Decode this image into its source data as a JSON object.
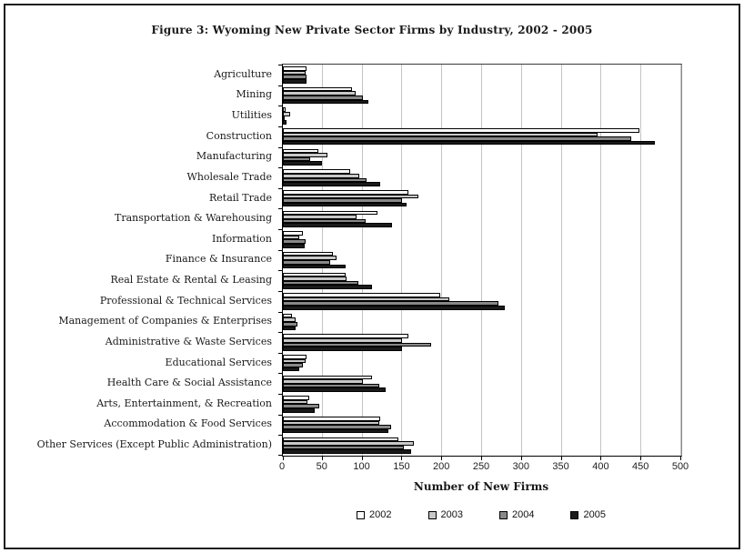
{
  "chart_data": {
    "type": "bar",
    "orientation": "horizontal",
    "title": "Figure 3: Wyoming New Private Sector Firms by Industry, 2002 - 2005",
    "xlabel": "Number of New Firms",
    "ylabel": "",
    "xlim": [
      0,
      500
    ],
    "xticks": [
      0,
      50,
      100,
      150,
      200,
      250,
      300,
      350,
      400,
      450,
      500
    ],
    "grid": "vertical",
    "legend_position": "bottom",
    "categories": [
      "Agriculture",
      "Mining",
      "Utilities",
      "Construction",
      "Manufacturing",
      "Wholesale Trade",
      "Retail Trade",
      "Transportation & Warehousing",
      "Information",
      "Finance & Insurance",
      "Real Estate & Rental & Leasing",
      "Professional & Technical Services",
      "Management of Companies & Enterprises",
      "Administrative & Waste Services",
      "Educational Services",
      "Health Care & Social Assistance",
      "Arts, Entertainment, & Recreation",
      "Accommodation & Food Services",
      "Other Services (Except Public Administration)"
    ],
    "series": [
      {
        "name": "2002",
        "color": "#ffffff",
        "values": [
          30,
          87,
          3,
          448,
          45,
          84,
          158,
          119,
          25,
          63,
          79,
          197,
          11,
          157,
          30,
          112,
          33,
          122,
          145
        ]
      },
      {
        "name": "2003",
        "color": "#c8c8c8",
        "values": [
          28,
          91,
          9,
          395,
          56,
          96,
          170,
          92,
          21,
          67,
          80,
          209,
          16,
          150,
          28,
          100,
          31,
          121,
          164
        ]
      },
      {
        "name": "2004",
        "color": "#888888",
        "values": [
          30,
          100,
          2,
          437,
          34,
          105,
          150,
          104,
          28,
          59,
          95,
          271,
          18,
          186,
          25,
          121,
          46,
          136,
          152
        ]
      },
      {
        "name": "2005",
        "color": "#1a1a1a",
        "values": [
          30,
          107,
          4,
          467,
          49,
          122,
          155,
          137,
          27,
          79,
          112,
          278,
          16,
          150,
          21,
          129,
          40,
          132,
          161
        ]
      }
    ]
  }
}
